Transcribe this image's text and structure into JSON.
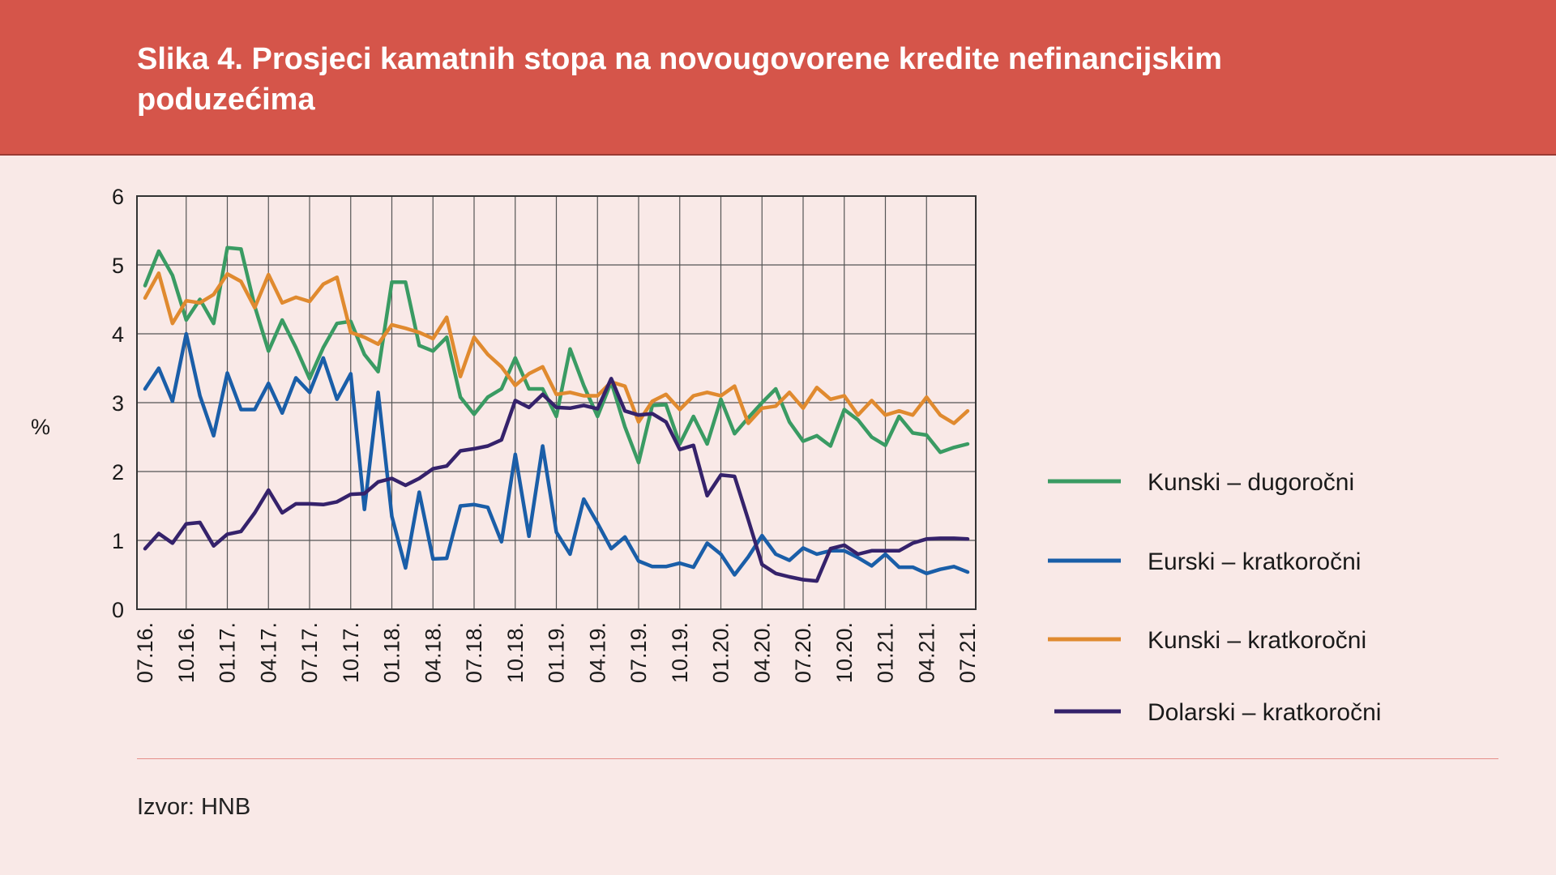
{
  "figure": {
    "title": "Slika 4. Prosjeci kamatnih stopa na novougovorene kredite nefinancijskim poduzećima",
    "source": "Izvor: HNB"
  },
  "chart_data": {
    "type": "line",
    "title": "Slika 4. Prosjeci kamatnih stopa na novougovorene kredite nefinancijskim poduzećima",
    "xlabel": "",
    "ylabel": "%",
    "ylim": [
      0,
      6
    ],
    "yticks": [
      "0",
      "1",
      "2",
      "3",
      "4",
      "5",
      "6"
    ],
    "grid": true,
    "legend_position": "right",
    "xtick_labels": [
      "07.16.",
      "10.16.",
      "01.17.",
      "04.17.",
      "07.17.",
      "10.17.",
      "01.18.",
      "04.18.",
      "07.18.",
      "10.18.",
      "01.19.",
      "04.19.",
      "07.19.",
      "10.19.",
      "01.20.",
      "04.20.",
      "07.20.",
      "10.20.",
      "01.21.",
      "04.21.",
      "07.21."
    ],
    "x_start": "07.16.",
    "series": [
      {
        "name": "Kunski – dugoročni",
        "color": "#3a9b63",
        "values": [
          4.7,
          5.2,
          4.85,
          4.2,
          4.5,
          4.15,
          5.25,
          5.23,
          4.4,
          3.75,
          4.2,
          3.8,
          3.35,
          3.8,
          4.15,
          4.18,
          3.7,
          3.45,
          4.75,
          4.75,
          3.83,
          3.75,
          3.95,
          3.08,
          2.83,
          3.08,
          3.2,
          3.65,
          3.2,
          3.2,
          2.8,
          3.78,
          3.25,
          2.8,
          3.3,
          2.65,
          2.13,
          2.96,
          2.97,
          2.4,
          2.8,
          2.4,
          3.05,
          2.55,
          2.78,
          3.0,
          3.2,
          2.72,
          2.44,
          2.52,
          2.37,
          2.9,
          2.75,
          2.5,
          2.38,
          2.8,
          2.56,
          2.53,
          2.28,
          2.35,
          2.4
        ]
      },
      {
        "name": "Eurski – kratkoročni",
        "color": "#1a5ea8",
        "values": [
          3.2,
          3.5,
          3.02,
          4.0,
          3.1,
          2.52,
          3.43,
          2.9,
          2.9,
          3.28,
          2.85,
          3.36,
          3.15,
          3.65,
          3.05,
          3.42,
          1.45,
          3.15,
          1.35,
          0.6,
          1.7,
          0.73,
          0.74,
          1.5,
          1.52,
          1.48,
          0.98,
          2.25,
          1.06,
          2.37,
          1.12,
          0.8,
          1.6,
          1.25,
          0.88,
          1.05,
          0.7,
          0.62,
          0.62,
          0.67,
          0.61,
          0.96,
          0.8,
          0.5,
          0.76,
          1.07,
          0.8,
          0.71,
          0.89,
          0.8,
          0.85,
          0.85,
          0.75,
          0.63,
          0.8,
          0.61,
          0.61,
          0.52,
          0.58,
          0.62,
          0.54
        ]
      },
      {
        "name": "Kunski – kratkoročni",
        "color": "#e08a2f",
        "values": [
          4.52,
          4.88,
          4.15,
          4.48,
          4.45,
          4.57,
          4.87,
          4.76,
          4.38,
          4.86,
          4.45,
          4.53,
          4.47,
          4.72,
          4.82,
          4.02,
          3.95,
          3.85,
          4.13,
          4.08,
          4.02,
          3.93,
          4.24,
          3.38,
          3.95,
          3.7,
          3.52,
          3.25,
          3.42,
          3.52,
          3.12,
          3.15,
          3.1,
          3.1,
          3.3,
          3.24,
          2.72,
          3.02,
          3.12,
          2.9,
          3.1,
          3.15,
          3.1,
          3.24,
          2.7,
          2.92,
          2.95,
          3.15,
          2.92,
          3.22,
          3.05,
          3.1,
          2.82,
          3.03,
          2.82,
          2.88,
          2.82,
          3.08,
          2.82,
          2.7,
          2.88
        ]
      },
      {
        "name": "Dolarski – kratkoročni",
        "color": "#35226b",
        "values": [
          0.88,
          1.1,
          0.96,
          1.24,
          1.26,
          0.92,
          1.09,
          1.13,
          1.4,
          1.73,
          1.4,
          1.53,
          1.53,
          1.52,
          1.56,
          1.67,
          1.68,
          1.85,
          1.9,
          1.8,
          1.9,
          2.04,
          2.08,
          2.3,
          2.33,
          2.37,
          2.46,
          3.03,
          2.93,
          3.12,
          2.93,
          2.92,
          2.96,
          2.91,
          3.35,
          2.88,
          2.82,
          2.84,
          2.72,
          2.32,
          2.38,
          1.65,
          1.95,
          1.93,
          1.3,
          0.65,
          0.52,
          0.47,
          0.43,
          0.41,
          0.88,
          0.93,
          0.8,
          0.85,
          0.85,
          0.85,
          0.96,
          1.02,
          1.03,
          1.03,
          1.02
        ]
      }
    ]
  }
}
